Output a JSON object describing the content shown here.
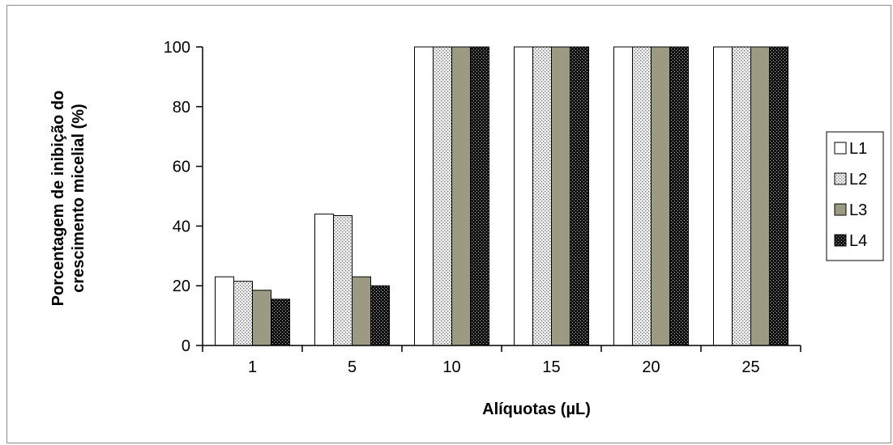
{
  "chart_data": {
    "type": "bar",
    "xlabel": "Alíquotas (µL)",
    "ylabel_line1": "Porcentagem de inibição do",
    "ylabel_line2": "crescimento micelial (%)",
    "categories": [
      "1",
      "5",
      "10",
      "15",
      "20",
      "25"
    ],
    "ylim": [
      0,
      100
    ],
    "yticks": [
      0,
      20,
      40,
      60,
      80,
      100
    ],
    "grid": false,
    "legend_position": "right",
    "series": [
      {
        "name": "L1",
        "values": [
          23,
          44,
          100,
          100,
          100,
          100
        ],
        "pattern": "white"
      },
      {
        "name": "L2",
        "values": [
          21.5,
          43.5,
          100,
          100,
          100,
          100
        ],
        "pattern": "dotted-light"
      },
      {
        "name": "L3",
        "values": [
          18.5,
          23,
          100,
          100,
          100,
          100
        ],
        "pattern": "olive-gray"
      },
      {
        "name": "L4",
        "values": [
          15.5,
          20,
          100,
          100,
          100,
          100
        ],
        "pattern": "dark-checker"
      }
    ]
  },
  "colors": {
    "olive_gray": "#9c9a82",
    "dark": "#101010",
    "outline": "#000000"
  }
}
